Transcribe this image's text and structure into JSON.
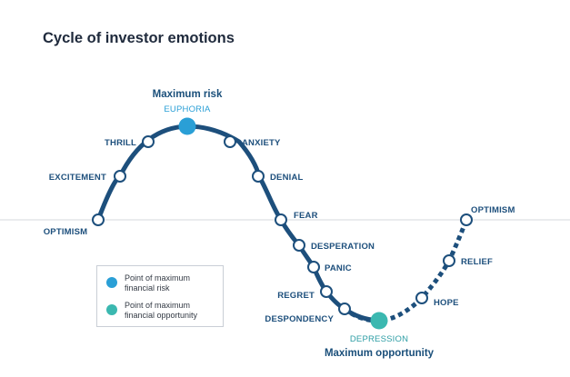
{
  "title": "Cycle of investor emotions",
  "headlines": {
    "peak": "Maximum risk",
    "trough": "Maximum opportunity"
  },
  "stages": [
    {
      "id": "optimism-start",
      "label": "OPTIMISM"
    },
    {
      "id": "excitement",
      "label": "EXCITEMENT"
    },
    {
      "id": "thrill",
      "label": "THRILL"
    },
    {
      "id": "euphoria",
      "label": "EUPHORIA",
      "marker": "max-risk"
    },
    {
      "id": "anxiety",
      "label": "ANXIETY"
    },
    {
      "id": "denial",
      "label": "DENIAL"
    },
    {
      "id": "fear",
      "label": "FEAR"
    },
    {
      "id": "desperation",
      "label": "DESPERATION"
    },
    {
      "id": "panic",
      "label": "PANIC"
    },
    {
      "id": "regret",
      "label": "REGRET"
    },
    {
      "id": "despondency",
      "label": "DESPONDENCY"
    },
    {
      "id": "depression",
      "label": "DEPRESSION",
      "marker": "max-opportunity"
    },
    {
      "id": "hope",
      "label": "HOPE"
    },
    {
      "id": "relief",
      "label": "RELIEF"
    },
    {
      "id": "optimism-end",
      "label": "OPTIMISM"
    }
  ],
  "legend": {
    "items": [
      {
        "label": "Point of maximum financial risk",
        "color": "#2a9fd6"
      },
      {
        "label": "Point of maximum financial opportunity",
        "color": "#3bb8b0"
      }
    ]
  },
  "colors": {
    "curve": "#1d4f7c",
    "max_risk": "#2a9fd6",
    "max_opportunity": "#3bb8b0",
    "baseline": "#d4d8de"
  }
}
